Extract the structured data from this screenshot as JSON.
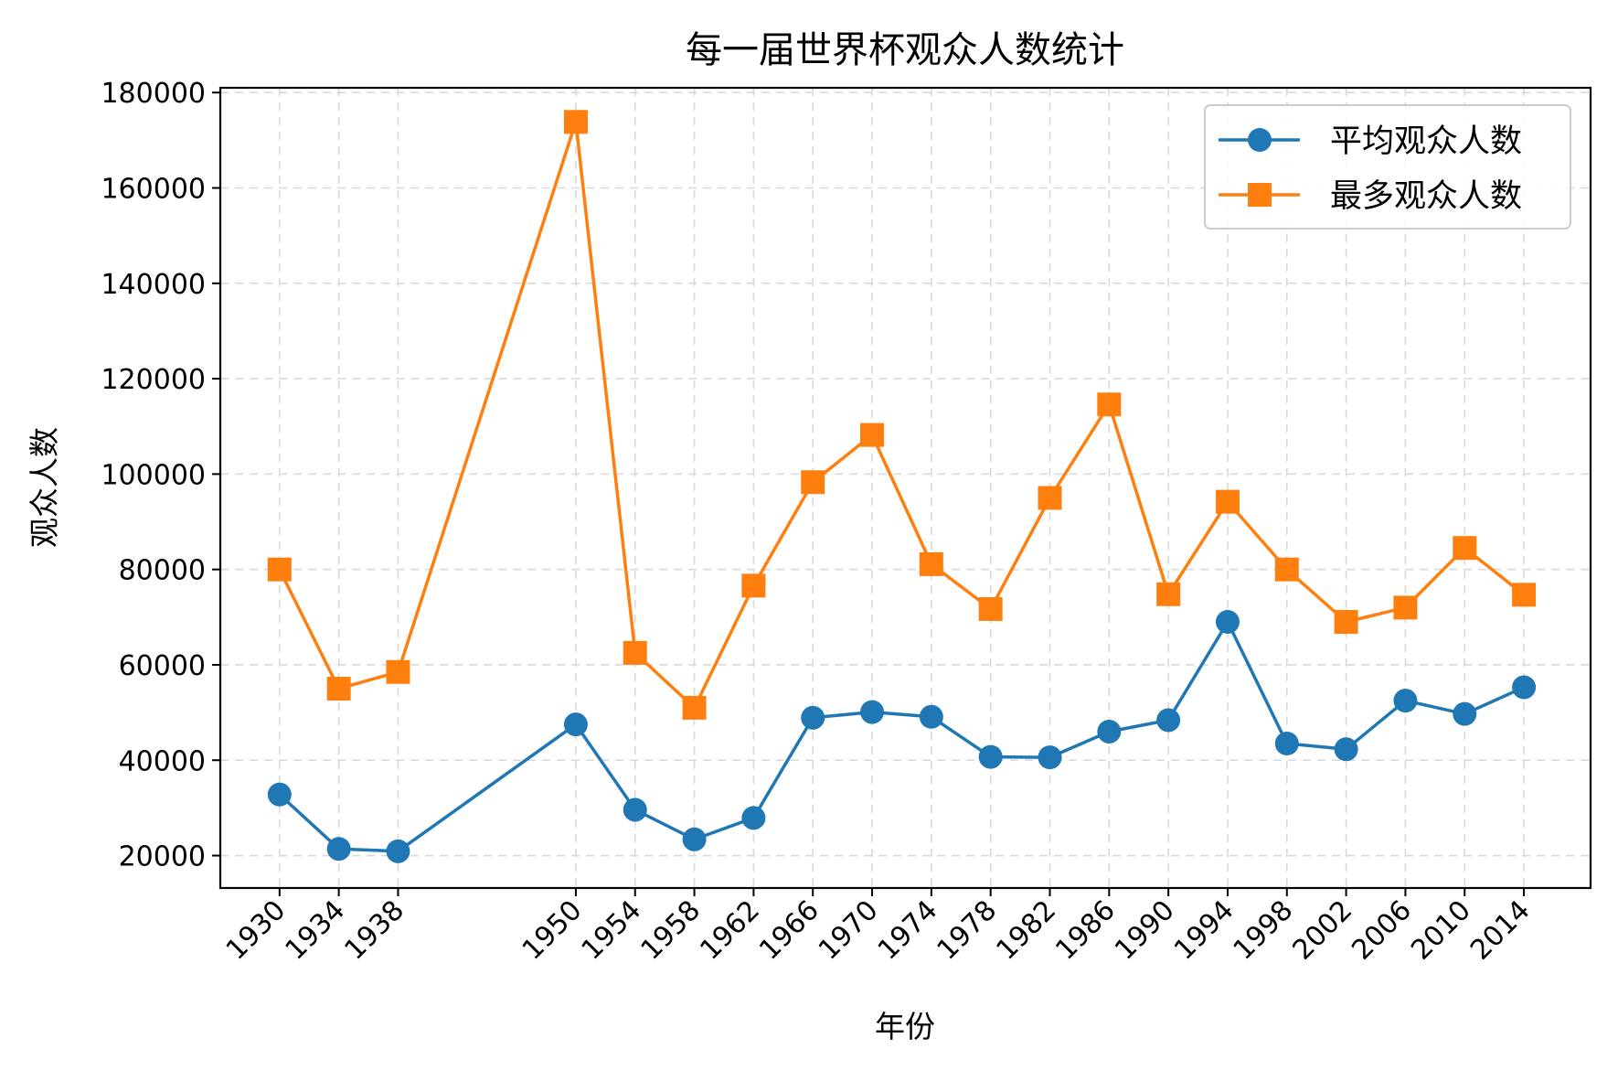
{
  "chart_data": {
    "type": "line",
    "title": "每一届世界杯观众人数统计",
    "xlabel": "年份",
    "ylabel": "观众人数",
    "x": [
      1930,
      1934,
      1938,
      1950,
      1954,
      1958,
      1962,
      1966,
      1970,
      1974,
      1978,
      1982,
      1986,
      1990,
      1994,
      1998,
      2002,
      2006,
      2010,
      2014
    ],
    "xtick_labels": [
      "1930",
      "1934",
      "1938",
      "1950",
      "1954",
      "1958",
      "1962",
      "1966",
      "1970",
      "1974",
      "1978",
      "1982",
      "1986",
      "1990",
      "1994",
      "1998",
      "2002",
      "2006",
      "2010",
      "2014"
    ],
    "xlim": [
      1926,
      2018.5
    ],
    "ylim": [
      13200,
      181000
    ],
    "yticks": [
      20000,
      40000,
      60000,
      80000,
      100000,
      120000,
      140000,
      160000,
      180000
    ],
    "ytick_labels": [
      "20000",
      "40000",
      "60000",
      "80000",
      "100000",
      "120000",
      "140000",
      "160000",
      "180000"
    ],
    "grid": true,
    "legend_position": "top-right",
    "series": [
      {
        "name": "平均观众人数",
        "color": "#1f77b4",
        "marker": "circle",
        "values": [
          32800,
          21400,
          20900,
          47500,
          29600,
          23400,
          27900,
          48900,
          50100,
          49100,
          40700,
          40600,
          46000,
          48400,
          69000,
          43500,
          42300,
          52500,
          49700,
          55300
        ]
      },
      {
        "name": "最多观众人数",
        "color": "#ff7f0e",
        "marker": "square",
        "values": [
          80000,
          55000,
          58500,
          173850,
          62500,
          51000,
          76600,
          98300,
          108200,
          81100,
          71700,
          95000,
          114600,
          74800,
          94200,
          80000,
          69000,
          72000,
          84500,
          74700
        ]
      }
    ]
  }
}
